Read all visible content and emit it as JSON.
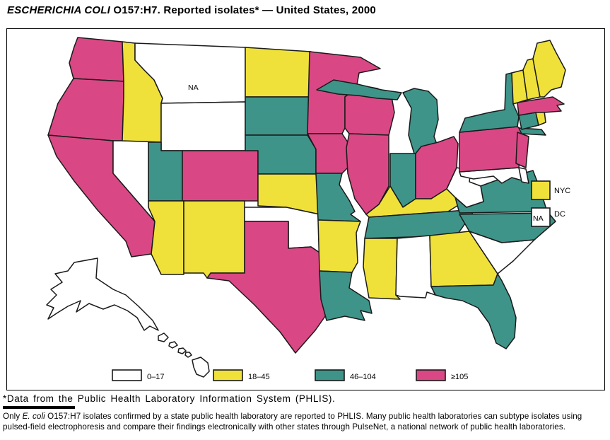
{
  "title": {
    "italic_part": "ESCHERICHIA COLI",
    "rest_part": " O157:H7. Reported isolates* — United States, 2000"
  },
  "map": {
    "na_label": "NA",
    "categories": {
      "c0": {
        "label": "0–17",
        "color": "#FFFFFF"
      },
      "c1": {
        "label": "18–45",
        "color": "#EFE13A"
      },
      "c2": {
        "label": "46–104",
        "color": "#3E9489"
      },
      "c3": {
        "label": "≥105",
        "color": "#D94884"
      }
    },
    "legend_order": [
      "c0",
      "c1",
      "c2",
      "c3"
    ],
    "outline_color": "#1a1a1a",
    "city_legend": [
      {
        "label": "NYC",
        "category": "c1",
        "box_text": ""
      },
      {
        "label": "DC",
        "category": "c0",
        "box_text": "NA"
      }
    ],
    "states": {
      "WA": "c3",
      "OR": "c3",
      "CA": "c3",
      "NV": "c0",
      "ID": "c1",
      "MT": "c0",
      "WY": "c0",
      "UT": "c2",
      "CO": "c3",
      "AZ": "c1",
      "NM": "c1",
      "ND": "c1",
      "SD": "c2",
      "NE": "c2",
      "KS": "c1",
      "OK": "c0",
      "TX": "c3",
      "MN": "c3",
      "IA": "c3",
      "MO": "c2",
      "AR": "c1",
      "LA": "c2",
      "WI": "c3",
      "IL": "c3",
      "MI": "c2",
      "IN": "c2",
      "OH": "c3",
      "KY": "c1",
      "TN": "c2",
      "MS": "c1",
      "AL": "c0",
      "GA": "c1",
      "FL": "c2",
      "SC": "c0",
      "NC": "c2",
      "VA": "c2",
      "WV": "c0",
      "MD": "c0",
      "DE": "c0",
      "PA": "c3",
      "NJ": "c3",
      "NY": "c2",
      "CT": "c2",
      "RI": "c1",
      "MA": "c3",
      "VT": "c1",
      "NH": "c1",
      "ME": "c1",
      "AK": "c0",
      "HI": "c0"
    },
    "na_state": "MT"
  },
  "footnotes": {
    "first": "*Data from the Public Health Laboratory Information System (PHLIS).",
    "second_pre": "Only ",
    "second_italic": "E. coli",
    "second_post": " O157:H7 isolates confirmed by a state public health laboratory are reported to PHLIS. Many public health laboratories can subtype isolates using pulsed-field electrophoresis and compare their findings electronically with other states through PulseNet, a national network of public health laboratories."
  }
}
